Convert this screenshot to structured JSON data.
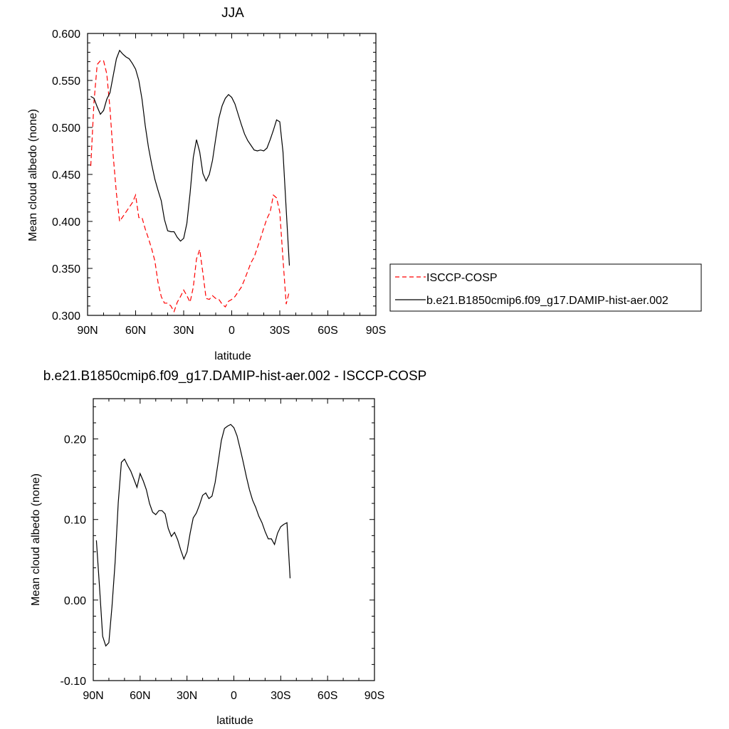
{
  "chart_data": [
    {
      "type": "line",
      "title": "JJA",
      "xlabel": "latitude",
      "ylabel": "Mean cloud albedo (none)",
      "xlim": [
        90,
        -90
      ],
      "ylim": [
        0.3,
        0.6
      ],
      "xticks": [
        90,
        60,
        30,
        0,
        -30,
        -60,
        -90
      ],
      "xtick_labels": [
        "90N",
        "60N",
        "30N",
        "0",
        "30S",
        "60S",
        "90S"
      ],
      "yticks": [
        0.3,
        0.35,
        0.4,
        0.45,
        0.5,
        0.55,
        0.6
      ],
      "ytick_labels": [
        "0.300",
        "0.350",
        "0.400",
        "0.450",
        "0.500",
        "0.550",
        "0.600"
      ],
      "legend": {
        "position": "right",
        "entries": [
          "ISCCP-COSP",
          "b.e21.B1850cmip6.f09_g17.DAMIP-hist-aer.002"
        ]
      },
      "series": [
        {
          "name": "ISCCP-COSP",
          "color": "#ff0000",
          "dash": "dashed",
          "x": [
            88,
            86,
            84,
            82,
            80,
            78,
            76,
            74,
            72,
            70,
            68,
            66,
            64,
            62,
            60,
            58,
            56,
            54,
            52,
            50,
            48,
            46,
            44,
            42,
            40,
            38,
            36,
            34,
            32,
            30,
            28,
            26,
            24,
            22,
            20,
            18,
            16,
            14,
            12,
            10,
            8,
            6,
            4,
            2,
            0,
            -2,
            -4,
            -6,
            -8,
            -10,
            -12,
            -14,
            -16,
            -18,
            -20,
            -22,
            -24,
            -26,
            -28,
            -30,
            -32,
            -34,
            -36,
            -38,
            -40,
            -42,
            -44,
            -46,
            -48,
            -50,
            -52,
            -54,
            -56,
            -58,
            -60,
            -62,
            -64,
            -66
          ],
          "values": [
            0.459,
            0.527,
            0.567,
            0.571,
            0.571,
            0.557,
            0.52,
            0.47,
            0.43,
            0.4,
            0.405,
            0.41,
            0.415,
            0.42,
            0.428,
            0.404,
            0.404,
            0.392,
            0.382,
            0.371,
            0.358,
            0.335,
            0.32,
            0.313,
            0.313,
            0.31,
            0.304,
            0.314,
            0.32,
            0.327,
            0.321,
            0.314,
            0.33,
            0.36,
            0.37,
            0.345,
            0.318,
            0.317,
            0.321,
            0.318,
            0.317,
            0.312,
            0.309,
            0.315,
            0.317,
            0.32,
            0.325,
            0.33,
            0.338,
            0.347,
            0.356,
            0.362,
            0.372,
            0.382,
            0.393,
            0.403,
            0.41,
            0.428,
            0.425,
            0.41,
            0.36,
            0.312,
            0.326,
            null,
            null,
            null,
            null,
            null,
            null,
            null,
            null,
            null,
            null,
            null,
            null,
            null,
            null,
            null
          ]
        },
        {
          "name": "b.e21.B1850cmip6.f09_g17.DAMIP-hist-aer.002",
          "color": "#000000",
          "dash": "solid",
          "x": [
            88,
            86,
            84,
            82,
            80,
            78,
            76,
            74,
            72,
            70,
            68,
            66,
            64,
            62,
            60,
            58,
            56,
            54,
            52,
            50,
            48,
            46,
            44,
            42,
            40,
            38,
            36,
            34,
            32,
            30,
            28,
            26,
            24,
            22,
            20,
            18,
            16,
            14,
            12,
            10,
            8,
            6,
            4,
            2,
            0,
            -2,
            -4,
            -6,
            -8,
            -10,
            -12,
            -14,
            -16,
            -18,
            -20,
            -22,
            -24,
            -26,
            -28,
            -30,
            -32,
            -34,
            -36,
            -38,
            -40,
            -42,
            -44,
            -46,
            -48,
            -50,
            -52,
            -54,
            -56,
            -58,
            -60,
            -62,
            -64,
            -66
          ],
          "values": [
            0.533,
            0.531,
            0.522,
            0.514,
            0.518,
            0.53,
            0.537,
            0.555,
            0.573,
            0.582,
            0.578,
            0.575,
            0.573,
            0.568,
            0.562,
            0.55,
            0.53,
            0.502,
            0.479,
            0.461,
            0.445,
            0.433,
            0.422,
            0.402,
            0.39,
            0.389,
            0.389,
            0.383,
            0.379,
            0.382,
            0.398,
            0.43,
            0.468,
            0.487,
            0.474,
            0.451,
            0.443,
            0.45,
            0.465,
            0.488,
            0.51,
            0.523,
            0.531,
            0.535,
            0.532,
            0.525,
            0.514,
            0.503,
            0.493,
            0.486,
            0.481,
            0.476,
            0.475,
            0.476,
            0.475,
            0.478,
            0.487,
            0.497,
            0.508,
            0.506,
            0.474,
            0.413,
            0.353,
            null,
            null,
            null,
            null,
            null,
            null,
            null,
            null,
            null,
            null,
            null,
            null,
            null,
            null,
            null
          ]
        }
      ]
    },
    {
      "type": "line",
      "title": "b.e21.B1850cmip6.f09_g17.DAMIP-hist-aer.002 - ISCCP-COSP",
      "xlabel": "latitude",
      "ylabel": "Mean cloud albedo (none)",
      "xlim": [
        90,
        -90
      ],
      "ylim": [
        -0.1,
        0.25
      ],
      "xticks": [
        90,
        60,
        30,
        0,
        -30,
        -60,
        -90
      ],
      "xtick_labels": [
        "90N",
        "60N",
        "30N",
        "0",
        "30S",
        "60S",
        "90S"
      ],
      "yticks": [
        -0.1,
        0,
        0.1,
        0.2
      ],
      "ytick_labels": [
        "-0.10",
        "0.00",
        "0.10",
        "0.20"
      ],
      "series": [
        {
          "color": "#000000",
          "dash": "solid",
          "x": [
            88,
            86,
            84,
            82,
            80,
            78,
            76,
            74,
            72,
            70,
            68,
            66,
            64,
            62,
            60,
            58,
            56,
            54,
            52,
            50,
            48,
            46,
            44,
            42,
            40,
            38,
            36,
            34,
            32,
            30,
            28,
            26,
            24,
            22,
            20,
            18,
            16,
            14,
            12,
            10,
            8,
            6,
            4,
            2,
            0,
            -2,
            -4,
            -6,
            -8,
            -10,
            -12,
            -14,
            -16,
            -18,
            -20,
            -22,
            -24,
            -26,
            -28,
            -30,
            -32,
            -34,
            -36,
            -38,
            -40,
            -42,
            -44,
            -46,
            -48,
            -50,
            -52,
            -54,
            -56,
            -58,
            -60,
            -62,
            -64,
            -66
          ],
          "values": [
            0.074,
            0.016,
            -0.045,
            -0.057,
            -0.053,
            -0.008,
            0.047,
            0.121,
            0.171,
            0.175,
            0.167,
            0.16,
            0.15,
            0.14,
            0.157,
            0.148,
            0.137,
            0.12,
            0.109,
            0.106,
            0.111,
            0.111,
            0.107,
            0.089,
            0.079,
            0.084,
            0.075,
            0.062,
            0.051,
            0.06,
            0.083,
            0.102,
            0.108,
            0.118,
            0.13,
            0.133,
            0.126,
            0.129,
            0.146,
            0.172,
            0.198,
            0.213,
            0.216,
            0.218,
            0.214,
            0.204,
            0.188,
            0.171,
            0.153,
            0.137,
            0.124,
            0.115,
            0.104,
            0.096,
            0.085,
            0.076,
            0.076,
            0.069,
            0.083,
            0.091,
            0.094,
            0.096,
            0.027,
            null,
            null,
            null,
            null,
            null,
            null,
            null,
            null,
            null,
            null,
            null,
            null,
            null,
            null,
            null
          ]
        }
      ]
    }
  ]
}
